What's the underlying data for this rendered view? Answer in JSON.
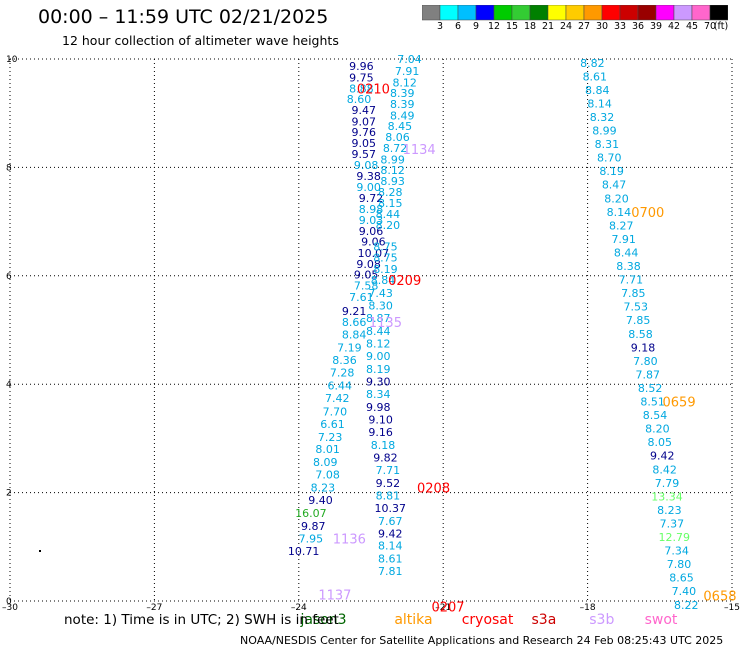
{
  "header": {
    "title": "00:00 – 11:59 UTC 02/21/2025",
    "subtitle": "12 hour collection of altimeter wave heights"
  },
  "colorbar": {
    "colors": [
      "#808080",
      "#00ffff",
      "#00bfff",
      "#0000ff",
      "#00cc00",
      "#33cc33",
      "#008000",
      "#ffff00",
      "#ffcc00",
      "#ff9900",
      "#ff0000",
      "#cc0000",
      "#990000",
      "#ff00ff",
      "#cc99ff",
      "#ff66cc",
      "#000000"
    ],
    "labels": [
      "3",
      "6",
      "9",
      "12",
      "15",
      "18",
      "21",
      "24",
      "27",
      "30",
      "33",
      "36",
      "39",
      "42",
      "45",
      "70",
      "(ft)"
    ]
  },
  "footer": {
    "note": "note:  1) Time is in UTC; 2) SWH is in feet",
    "credit": "NOAA/NESDIS Center for Satellite Applications and Research    24 Feb 08:25:43 UTC 2025"
  },
  "legend": [
    {
      "name": "jason3",
      "color": "#006400",
      "x": -23.55
    },
    {
      "name": "altika",
      "color": "#ff9900",
      "x": -21.6
    },
    {
      "name": "cryosat",
      "color": "#ff0000",
      "x": -20.2
    },
    {
      "name": "s3a",
      "color": "#cc0000",
      "x": -18.75
    },
    {
      "name": "s3b",
      "color": "#cc99ff",
      "x": -17.55
    },
    {
      "name": "swot",
      "color": "#ff66cc",
      "x": -16.4
    }
  ],
  "chart_data": {
    "type": "scatter",
    "title": "00:00 – 11:59 UTC 02/21/2025",
    "subtitle": "12 hour collection of altimeter wave heights",
    "xlim": [
      -30,
      -15
    ],
    "ylim": [
      0,
      10
    ],
    "x_ticks": [
      {
        "value": -30,
        "label": "–30"
      },
      {
        "value": -27,
        "label": "–27"
      },
      {
        "value": -24,
        "label": "–24"
      },
      {
        "value": -21,
        "label": "–21"
      },
      {
        "value": -18,
        "label": "–18"
      },
      {
        "value": -15,
        "label": "–15"
      }
    ],
    "y_ticks": [
      {
        "value": 0,
        "label": "0"
      },
      {
        "value": 2,
        "label": "2"
      },
      {
        "value": 4,
        "label": "4"
      },
      {
        "value": 6,
        "label": "6"
      },
      {
        "value": 8,
        "label": "8"
      },
      {
        "value": 10,
        "label": "10"
      }
    ],
    "grid": true,
    "value_labels": [
      {
        "text": "9.96",
        "x": -22.7,
        "y": 9.87,
        "color": "#00008b"
      },
      {
        "text": "9.75",
        "x": -22.7,
        "y": 9.66,
        "color": "#00008b"
      },
      {
        "text": "8.88",
        "x": -22.7,
        "y": 9.46,
        "color": "#00a8e0"
      },
      {
        "text": "8.60",
        "x": -22.75,
        "y": 9.26,
        "color": "#00a8e0"
      },
      {
        "text": "9.47",
        "x": -22.65,
        "y": 9.06,
        "color": "#00008b"
      },
      {
        "text": "9.07",
        "x": -22.65,
        "y": 8.85,
        "color": "#00008b"
      },
      {
        "text": "9.76",
        "x": -22.65,
        "y": 8.65,
        "color": "#00008b"
      },
      {
        "text": "9.05",
        "x": -22.65,
        "y": 8.45,
        "color": "#00008b"
      },
      {
        "text": "9.57",
        "x": -22.65,
        "y": 8.25,
        "color": "#00008b"
      },
      {
        "text": "9.08",
        "x": -22.6,
        "y": 8.04,
        "color": "#00a8e0"
      },
      {
        "text": "9.38",
        "x": -22.55,
        "y": 7.84,
        "color": "#00008b"
      },
      {
        "text": "9.00",
        "x": -22.55,
        "y": 7.64,
        "color": "#00a8e0"
      },
      {
        "text": "9.72",
        "x": -22.5,
        "y": 7.44,
        "color": "#00008b"
      },
      {
        "text": "8.98",
        "x": -22.5,
        "y": 7.23,
        "color": "#00a8e0"
      },
      {
        "text": "9.03",
        "x": -22.5,
        "y": 7.03,
        "color": "#00a8e0"
      },
      {
        "text": "9.06",
        "x": -22.5,
        "y": 6.83,
        "color": "#00008b"
      },
      {
        "text": "9.06",
        "x": -22.45,
        "y": 6.63,
        "color": "#00008b"
      },
      {
        "text": "10.07",
        "x": -22.45,
        "y": 6.42,
        "color": "#00008b"
      },
      {
        "text": "9.08",
        "x": -22.55,
        "y": 6.22,
        "color": "#00008b"
      },
      {
        "text": "9.05",
        "x": -22.6,
        "y": 6.02,
        "color": "#00008b"
      },
      {
        "text": "7.58",
        "x": -22.6,
        "y": 5.82,
        "color": "#00a8e0"
      },
      {
        "text": "7.61",
        "x": -22.7,
        "y": 5.61,
        "color": "#00a8e0"
      },
      {
        "text": "9.21",
        "x": -22.85,
        "y": 5.35,
        "color": "#00008b"
      },
      {
        "text": "8.66",
        "x": -22.85,
        "y": 5.15,
        "color": "#00a8e0"
      },
      {
        "text": "8.84",
        "x": -22.85,
        "y": 4.92,
        "color": "#00a8e0"
      },
      {
        "text": "7.19",
        "x": -22.95,
        "y": 4.68,
        "color": "#00a8e0"
      },
      {
        "text": "8.36",
        "x": -23.05,
        "y": 4.45,
        "color": "#00a8e0"
      },
      {
        "text": "7.28",
        "x": -23.1,
        "y": 4.22,
        "color": "#00a8e0"
      },
      {
        "text": "6.44",
        "x": -23.15,
        "y": 3.98,
        "color": "#00a8e0"
      },
      {
        "text": "7.42",
        "x": -23.2,
        "y": 3.75,
        "color": "#00a8e0"
      },
      {
        "text": "7.70",
        "x": -23.25,
        "y": 3.5,
        "color": "#00a8e0"
      },
      {
        "text": "6.61",
        "x": -23.3,
        "y": 3.27,
        "color": "#00a8e0"
      },
      {
        "text": "7.23",
        "x": -23.35,
        "y": 3.03,
        "color": "#00a8e0"
      },
      {
        "text": "8.01",
        "x": -23.4,
        "y": 2.8,
        "color": "#00a8e0"
      },
      {
        "text": "8.09",
        "x": -23.45,
        "y": 2.56,
        "color": "#00a8e0"
      },
      {
        "text": "7.08",
        "x": -23.4,
        "y": 2.33,
        "color": "#00a8e0"
      },
      {
        "text": "8.23",
        "x": -23.5,
        "y": 2.09,
        "color": "#00a8e0"
      },
      {
        "text": "9.40",
        "x": -23.55,
        "y": 1.86,
        "color": "#00008b"
      },
      {
        "text": "16.07",
        "x": -23.75,
        "y": 1.62,
        "color": "#22aa22"
      },
      {
        "text": "9.87",
        "x": -23.7,
        "y": 1.38,
        "color": "#00008b"
      },
      {
        "text": "7.95",
        "x": -23.75,
        "y": 1.15,
        "color": "#00a8e0"
      },
      {
        "text": "10.71",
        "x": -23.9,
        "y": 0.92,
        "color": "#00008b"
      },
      {
        "text": "7.04",
        "x": -21.7,
        "y": 10.0,
        "color": "#00a8e0"
      },
      {
        "text": "7.91",
        "x": -21.75,
        "y": 9.78,
        "color": "#00a8e0"
      },
      {
        "text": "8.12",
        "x": -21.8,
        "y": 9.57,
        "color": "#00a8e0"
      },
      {
        "text": "8.39",
        "x": -21.85,
        "y": 9.37,
        "color": "#00a8e0"
      },
      {
        "text": "8.39",
        "x": -21.85,
        "y": 9.17,
        "color": "#00a8e0"
      },
      {
        "text": "8.49",
        "x": -21.85,
        "y": 8.96,
        "color": "#00a8e0"
      },
      {
        "text": "8.45",
        "x": -21.9,
        "y": 8.76,
        "color": "#00a8e0"
      },
      {
        "text": "8.06",
        "x": -21.95,
        "y": 8.56,
        "color": "#00a8e0"
      },
      {
        "text": "8.72",
        "x": -22.0,
        "y": 8.36,
        "color": "#00a8e0"
      },
      {
        "text": "8.99",
        "x": -22.05,
        "y": 8.15,
        "color": "#00a8e0"
      },
      {
        "text": "8.12",
        "x": -22.05,
        "y": 7.95,
        "color": "#00a8e0"
      },
      {
        "text": "8.93",
        "x": -22.05,
        "y": 7.75,
        "color": "#00a8e0"
      },
      {
        "text": "8.28",
        "x": -22.1,
        "y": 7.55,
        "color": "#00a8e0"
      },
      {
        "text": "8.15",
        "x": -22.1,
        "y": 7.34,
        "color": "#00a8e0"
      },
      {
        "text": "8.44",
        "x": -22.15,
        "y": 7.14,
        "color": "#00a8e0"
      },
      {
        "text": "8.20",
        "x": -22.15,
        "y": 6.94,
        "color": "#00a8e0"
      },
      {
        "text": "8.75",
        "x": -22.2,
        "y": 6.54,
        "color": "#00a8e0"
      },
      {
        "text": "8.75",
        "x": -22.2,
        "y": 6.34,
        "color": "#00a8e0"
      },
      {
        "text": "8.19",
        "x": -22.2,
        "y": 6.13,
        "color": "#00a8e0"
      },
      {
        "text": "8.84",
        "x": -22.25,
        "y": 5.92,
        "color": "#00a8e0"
      },
      {
        "text": "7.43",
        "x": -22.3,
        "y": 5.68,
        "color": "#00a8e0"
      },
      {
        "text": "8.30",
        "x": -22.3,
        "y": 5.45,
        "color": "#00a8e0"
      },
      {
        "text": "8.87",
        "x": -22.35,
        "y": 5.22,
        "color": "#00a8e0"
      },
      {
        "text": "8.44",
        "x": -22.35,
        "y": 4.98,
        "color": "#00a8e0"
      },
      {
        "text": "8.12",
        "x": -22.35,
        "y": 4.75,
        "color": "#00a8e0"
      },
      {
        "text": "9.00",
        "x": -22.35,
        "y": 4.52,
        "color": "#00a8e0"
      },
      {
        "text": "8.19",
        "x": -22.35,
        "y": 4.28,
        "color": "#00a8e0"
      },
      {
        "text": "9.30",
        "x": -22.35,
        "y": 4.05,
        "color": "#00008b"
      },
      {
        "text": "8.34",
        "x": -22.35,
        "y": 3.82,
        "color": "#00a8e0"
      },
      {
        "text": "9.98",
        "x": -22.35,
        "y": 3.58,
        "color": "#00008b"
      },
      {
        "text": "9.10",
        "x": -22.3,
        "y": 3.35,
        "color": "#00008b"
      },
      {
        "text": "9.16",
        "x": -22.3,
        "y": 3.12,
        "color": "#00008b"
      },
      {
        "text": "8.18",
        "x": -22.25,
        "y": 2.88,
        "color": "#00a8e0"
      },
      {
        "text": "9.82",
        "x": -22.2,
        "y": 2.65,
        "color": "#00008b"
      },
      {
        "text": "7.71",
        "x": -22.15,
        "y": 2.42,
        "color": "#00a8e0"
      },
      {
        "text": "9.52",
        "x": -22.15,
        "y": 2.18,
        "color": "#00008b"
      },
      {
        "text": "8.81",
        "x": -22.15,
        "y": 1.95,
        "color": "#00a8e0"
      },
      {
        "text": "10.37",
        "x": -22.1,
        "y": 1.72,
        "color": "#00008b"
      },
      {
        "text": "7.67",
        "x": -22.1,
        "y": 1.48,
        "color": "#00a8e0"
      },
      {
        "text": "9.42",
        "x": -22.1,
        "y": 1.25,
        "color": "#00008b"
      },
      {
        "text": "8.14",
        "x": -22.1,
        "y": 1.02,
        "color": "#00a8e0"
      },
      {
        "text": "8.61",
        "x": -22.1,
        "y": 0.78,
        "color": "#00a8e0"
      },
      {
        "text": "7.81",
        "x": -22.1,
        "y": 0.55,
        "color": "#00a8e0"
      },
      {
        "text": "8.82",
        "x": -17.9,
        "y": 9.93,
        "color": "#00a8e0"
      },
      {
        "text": "8.61",
        "x": -17.85,
        "y": 9.68,
        "color": "#00a8e0"
      },
      {
        "text": "8.84",
        "x": -17.8,
        "y": 9.43,
        "color": "#00a8e0"
      },
      {
        "text": "8.14",
        "x": -17.75,
        "y": 9.18,
        "color": "#00a8e0"
      },
      {
        "text": "8.32",
        "x": -17.7,
        "y": 8.93,
        "color": "#00a8e0"
      },
      {
        "text": "8.99",
        "x": -17.65,
        "y": 8.68,
        "color": "#00a8e0"
      },
      {
        "text": "8.31",
        "x": -17.6,
        "y": 8.43,
        "color": "#00a8e0"
      },
      {
        "text": "8.70",
        "x": -17.55,
        "y": 8.18,
        "color": "#00a8e0"
      },
      {
        "text": "8.19",
        "x": -17.5,
        "y": 7.93,
        "color": "#00a8e0"
      },
      {
        "text": "8.47",
        "x": -17.45,
        "y": 7.68,
        "color": "#00a8e0"
      },
      {
        "text": "8.20",
        "x": -17.4,
        "y": 7.43,
        "color": "#00a8e0"
      },
      {
        "text": "8.14",
        "x": -17.35,
        "y": 7.18,
        "color": "#00a8e0"
      },
      {
        "text": "8.27",
        "x": -17.3,
        "y": 6.93,
        "color": "#00a8e0"
      },
      {
        "text": "7.91",
        "x": -17.25,
        "y": 6.68,
        "color": "#00a8e0"
      },
      {
        "text": "8.44",
        "x": -17.2,
        "y": 6.43,
        "color": "#00a8e0"
      },
      {
        "text": "8.38",
        "x": -17.15,
        "y": 6.18,
        "color": "#00a8e0"
      },
      {
        "text": "7.71",
        "x": -17.1,
        "y": 5.93,
        "color": "#00a8e0"
      },
      {
        "text": "7.85",
        "x": -17.05,
        "y": 5.68,
        "color": "#00a8e0"
      },
      {
        "text": "7.53",
        "x": -17.0,
        "y": 5.43,
        "color": "#00a8e0"
      },
      {
        "text": "7.85",
        "x": -16.95,
        "y": 5.18,
        "color": "#00a8e0"
      },
      {
        "text": "8.58",
        "x": -16.9,
        "y": 4.93,
        "color": "#00a8e0"
      },
      {
        "text": "9.18",
        "x": -16.85,
        "y": 4.68,
        "color": "#00008b"
      },
      {
        "text": "7.80",
        "x": -16.8,
        "y": 4.43,
        "color": "#00a8e0"
      },
      {
        "text": "7.87",
        "x": -16.75,
        "y": 4.18,
        "color": "#00a8e0"
      },
      {
        "text": "8.52",
        "x": -16.7,
        "y": 3.93,
        "color": "#00a8e0"
      },
      {
        "text": "8.51",
        "x": -16.65,
        "y": 3.68,
        "color": "#00a8e0"
      },
      {
        "text": "8.54",
        "x": -16.6,
        "y": 3.43,
        "color": "#00a8e0"
      },
      {
        "text": "8.20",
        "x": -16.55,
        "y": 3.18,
        "color": "#00a8e0"
      },
      {
        "text": "8.05",
        "x": -16.5,
        "y": 2.93,
        "color": "#00a8e0"
      },
      {
        "text": "9.42",
        "x": -16.45,
        "y": 2.68,
        "color": "#00008b"
      },
      {
        "text": "8.42",
        "x": -16.4,
        "y": 2.43,
        "color": "#00a8e0"
      },
      {
        "text": "7.79",
        "x": -16.35,
        "y": 2.18,
        "color": "#00a8e0"
      },
      {
        "text": "13.34",
        "x": -16.35,
        "y": 1.93,
        "color": "#66ff66"
      },
      {
        "text": "8.23",
        "x": -16.3,
        "y": 1.68,
        "color": "#00a8e0"
      },
      {
        "text": "7.37",
        "x": -16.25,
        "y": 1.43,
        "color": "#00a8e0"
      },
      {
        "text": "12.79",
        "x": -16.2,
        "y": 1.18,
        "color": "#66ff66"
      },
      {
        "text": "7.34",
        "x": -16.15,
        "y": 0.93,
        "color": "#00a8e0"
      },
      {
        "text": "7.80",
        "x": -16.1,
        "y": 0.68,
        "color": "#00a8e0"
      },
      {
        "text": "8.65",
        "x": -16.05,
        "y": 0.43,
        "color": "#00a8e0"
      },
      {
        "text": "7.40",
        "x": -16.0,
        "y": 0.18,
        "color": "#00a8e0"
      },
      {
        "text": "8.22",
        "x": -15.95,
        "y": -0.07,
        "color": "#00a8e0"
      }
    ],
    "time_labels": [
      {
        "text": "0210",
        "x": -22.45,
        "y": 9.46,
        "color": "#ff0000"
      },
      {
        "text": "1134",
        "x": -21.5,
        "y": 8.34,
        "color": "#cc99ff"
      },
      {
        "text": "0700",
        "x": -16.75,
        "y": 7.18,
        "color": "#ff9900"
      },
      {
        "text": "0209",
        "x": -21.8,
        "y": 5.92,
        "color": "#ff0000"
      },
      {
        "text": "1135",
        "x": -22.2,
        "y": 5.15,
        "color": "#cc99ff"
      },
      {
        "text": "0659",
        "x": -16.1,
        "y": 3.68,
        "color": "#ff9900"
      },
      {
        "text": "0208",
        "x": -21.2,
        "y": 2.09,
        "color": "#ff0000"
      },
      {
        "text": "1136",
        "x": -22.95,
        "y": 1.15,
        "color": "#cc99ff"
      },
      {
        "text": "1137",
        "x": -23.25,
        "y": 0.12,
        "color": "#cc99ff"
      },
      {
        "text": "0207",
        "x": -20.9,
        "y": -0.1,
        "color": "#ff0000"
      },
      {
        "text": "0658",
        "x": -15.25,
        "y": 0.1,
        "color": "#ff9900"
      }
    ]
  }
}
